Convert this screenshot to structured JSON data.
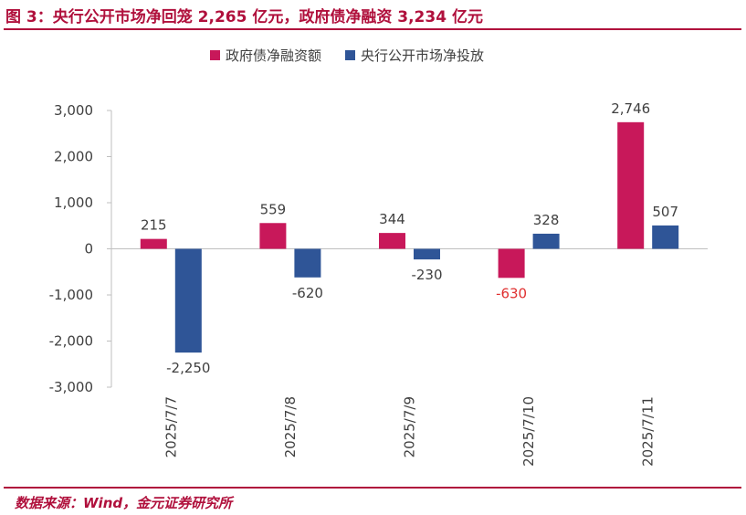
{
  "figure_title": "图 3：央行公开市场净回笼 2,265 亿元，政府债净融资 3,234 亿元",
  "source_note": "数据来源：Wind，金元证券研究所",
  "colors": {
    "accent": "#b0103c",
    "series1": "#c8185a",
    "series2": "#2f5597",
    "negative_label": "#e03030",
    "text": "#404040",
    "axis": "#bfbfbf"
  },
  "chart_data": {
    "type": "bar",
    "title": "",
    "xlabel": "",
    "ylabel": "",
    "categories": [
      "2025/7/7",
      "2025/7/8",
      "2025/7/9",
      "2025/7/10",
      "2025/7/11"
    ],
    "ylim": [
      -3000,
      3000
    ],
    "yticks": [
      3000,
      2000,
      1000,
      0,
      -1000,
      -2000,
      -3000
    ],
    "ytick_labels": [
      "3,000",
      "2,000",
      "1,000",
      "0",
      "-1,000",
      "-2,000",
      "-3,000"
    ],
    "legend_position": "top",
    "grid": false,
    "series": [
      {
        "name": "政府债净融资额",
        "color": "#c8185a",
        "values": [
          215,
          559,
          344,
          -630,
          2746
        ],
        "labels": [
          "215",
          "559",
          "344",
          "-630",
          "2,746"
        ]
      },
      {
        "name": "央行公开市场净投放",
        "color": "#2f5597",
        "values": [
          -2250,
          -620,
          -230,
          328,
          507
        ],
        "labels": [
          "-2,250",
          "-620",
          "-230",
          "328",
          "507"
        ]
      }
    ]
  }
}
